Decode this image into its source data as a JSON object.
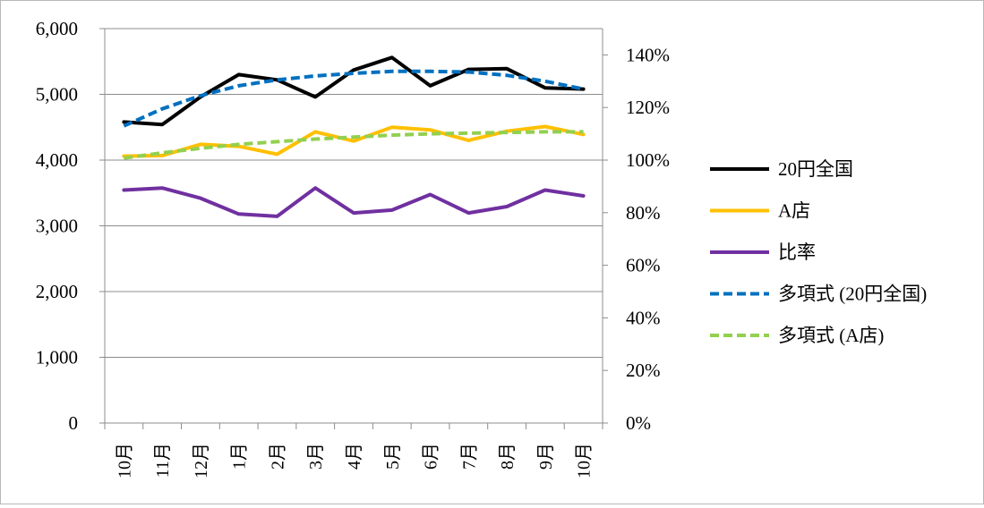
{
  "chart_data": {
    "type": "line",
    "categories": [
      "10月",
      "11月",
      "12月",
      "1月",
      "2月",
      "3月",
      "4月",
      "5月",
      "6月",
      "7月",
      "8月",
      "9月",
      "10月"
    ],
    "series": [
      {
        "name": "20円全国",
        "axis": "left",
        "color": "#000000",
        "dash": "solid",
        "values": [
          4580,
          4540,
          4960,
          5300,
          5220,
          4960,
          5370,
          5560,
          5130,
          5380,
          5390,
          5100,
          5080
        ]
      },
      {
        "name": "A店",
        "axis": "left",
        "color": "#ffc000",
        "dash": "solid",
        "values": [
          4060,
          4070,
          4240,
          4210,
          4090,
          4430,
          4290,
          4500,
          4460,
          4300,
          4440,
          4510,
          4390
        ]
      },
      {
        "name": "比率",
        "axis": "right",
        "color": "#7030a0",
        "dash": "solid",
        "values": [
          0.886,
          0.894,
          0.855,
          0.795,
          0.786,
          0.894,
          0.799,
          0.81,
          0.869,
          0.799,
          0.823,
          0.886,
          0.864
        ]
      },
      {
        "name": "多項式 (20円全国)",
        "axis": "left",
        "color": "#0070c0",
        "dash": "dashed",
        "values": [
          4520,
          4780,
          4980,
          5130,
          5220,
          5280,
          5320,
          5350,
          5350,
          5340,
          5290,
          5200,
          5080
        ]
      },
      {
        "name": "多項式 (A店)",
        "axis": "left",
        "color": "#92d050",
        "dash": "dashed",
        "values": [
          4030,
          4110,
          4180,
          4240,
          4280,
          4320,
          4350,
          4380,
          4400,
          4410,
          4420,
          4430,
          4430
        ]
      }
    ],
    "y_left": {
      "min": 0,
      "max": 6000,
      "ticks": [
        "0",
        "1,000",
        "2,000",
        "3,000",
        "4,000",
        "5,000",
        "6,000"
      ]
    },
    "y_right": {
      "min": 0,
      "max": 1.5,
      "ticks": [
        "0%",
        "20%",
        "40%",
        "60%",
        "80%",
        "100%",
        "120%",
        "140%"
      ]
    },
    "grid": true,
    "legend_position": "right"
  }
}
